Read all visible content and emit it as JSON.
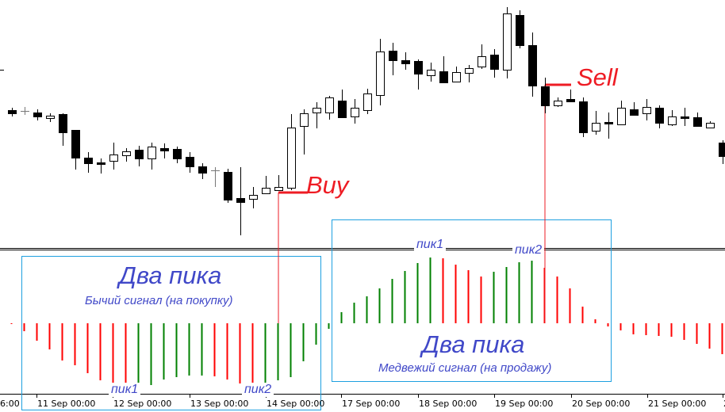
{
  "chart_data": [
    {
      "type": "candlestick",
      "x_tick_labels": [
        "6:00",
        "11 Sep 00:00",
        "12 Sep 00:00",
        "13 Sep 00:00",
        "14 Sep 00:00",
        "17 Sep 00:00",
        "18 Sep 00:00",
        "19 Sep 00:00",
        "20 Sep 00:00",
        "21 Sep 00:00",
        "2"
      ],
      "ohlc": [
        [
          161,
          164,
          153,
          157
        ],
        [
          160,
          165,
          155,
          160
        ],
        [
          158,
          162,
          148,
          153
        ],
        [
          151,
          157,
          146,
          154
        ],
        [
          156,
          157,
          116,
          133
        ],
        [
          136,
          136,
          86,
          101
        ],
        [
          101,
          108,
          82,
          94
        ],
        [
          95,
          100,
          81,
          93
        ],
        [
          97,
          120,
          86,
          105
        ],
        [
          104,
          113,
          96,
          109
        ],
        [
          111,
          116,
          90,
          100
        ],
        [
          100,
          120,
          86,
          115
        ],
        [
          113,
          119,
          100,
          110
        ],
        [
          112,
          115,
          94,
          100
        ],
        [
          102,
          108,
          82,
          90
        ],
        [
          90,
          94,
          74,
          82
        ],
        [
          85,
          89,
          64,
          85
        ],
        [
          83,
          87,
          44,
          48
        ],
        [
          50,
          89,
          3,
          45
        ],
        [
          49,
          64,
          37,
          54
        ],
        [
          56,
          78,
          57,
          63
        ],
        [
          60,
          79,
          59,
          64
        ],
        [
          63,
          156,
          60,
          139
        ],
        [
          141,
          162,
          105,
          157
        ],
        [
          158,
          171,
          138,
          164
        ],
        [
          158,
          179,
          149,
          177
        ],
        [
          173,
          187,
          152,
          152
        ],
        [
          153,
          175,
          144,
          164
        ],
        [
          161,
          188,
          156,
          182
        ],
        [
          180,
          251,
          167,
          235
        ],
        [
          236,
          246,
          205,
          224
        ],
        [
          224,
          234,
          212,
          220
        ],
        [
          223,
          225,
          187,
          207
        ],
        [
          205,
          221,
          197,
          212
        ],
        [
          210,
          229,
          196,
          196
        ],
        [
          197,
          216,
          197,
          209
        ],
        [
          208,
          218,
          196,
          214
        ],
        [
          216,
          244,
          213,
          229
        ],
        [
          231,
          238,
          202,
          213
        ],
        [
          212,
          291,
          201,
          283
        ],
        [
          281,
          287,
          239,
          243
        ],
        [
          243,
          259,
          178,
          192
        ],
        [
          191,
          202,
          157,
          167
        ],
        [
          167,
          177,
          165,
          173
        ],
        [
          175,
          187,
          171,
          172
        ],
        [
          172,
          177,
          127,
          133
        ],
        [
          135,
          160,
          130,
          145
        ],
        [
          146,
          158,
          125,
          144
        ],
        [
          143,
          173,
          142,
          164
        ],
        [
          162,
          171,
          154,
          155
        ],
        [
          157,
          175,
          148,
          165
        ],
        [
          164,
          167,
          138,
          145
        ],
        [
          143,
          161,
          141,
          153
        ],
        [
          153,
          164,
          141,
          151
        ],
        [
          152,
          158,
          140,
          141
        ],
        [
          139,
          147,
          138,
          145
        ],
        [
          120,
          123,
          93,
          103
        ]
      ],
      "annotations": {
        "buy": {
          "label": "Buy",
          "candle": 22
        },
        "sell": {
          "label": "Sell",
          "candle": 43
        }
      },
      "colors": {
        "bull_body": "#ffffff",
        "bear_body": "#000000",
        "doji": "#777777",
        "signal": "#ee1c24"
      }
    },
    {
      "type": "histogram",
      "values": [
        -1,
        -10,
        -22,
        -33,
        -47,
        -53,
        -63,
        -72,
        -79,
        -82,
        -81,
        -78,
        -71,
        -68,
        -66,
        -66,
        -67,
        -71,
        -76,
        -79,
        -77,
        -72,
        -68,
        -48,
        -27,
        -7,
        14,
        26,
        34,
        44,
        56,
        66,
        76,
        83,
        82,
        74,
        67,
        59,
        65,
        71,
        77,
        79,
        70,
        59,
        44,
        21,
        5,
        -4,
        -9,
        -14,
        -15,
        -16,
        -17,
        -21,
        -26,
        -32,
        -39
      ],
      "bar_colors": [
        "r",
        "r",
        "r",
        "r",
        "r",
        "r",
        "r",
        "r",
        "r",
        "r",
        "g",
        "g",
        "g",
        "g",
        "g",
        "g",
        "r",
        "r",
        "r",
        "r",
        "g",
        "g",
        "g",
        "g",
        "g",
        "g",
        "g",
        "g",
        "g",
        "g",
        "g",
        "g",
        "g",
        "g",
        "r",
        "r",
        "r",
        "r",
        "g",
        "g",
        "g",
        "g",
        "r",
        "r",
        "r",
        "r",
        "r",
        "r",
        "r",
        "r",
        "r",
        "r",
        "r",
        "r",
        "r",
        "r",
        "r"
      ],
      "colors": {
        "g": "#008000",
        "r": "#ff0000",
        "box": "#1ea0e0",
        "text": "#4048c8"
      }
    }
  ],
  "annotations": {
    "buy_label": "Buy",
    "sell_label": "Sell",
    "bull_title": "Два пика",
    "bull_subtitle": "Бычий сигнал (на покупку)",
    "bear_title": "Два пика",
    "bear_subtitle": "Медвежий сигнал (на продажу)",
    "bull_peak1": "пик1",
    "bull_peak2": "пик2",
    "bear_peak1": "пик1",
    "bear_peak2": "пик2"
  }
}
